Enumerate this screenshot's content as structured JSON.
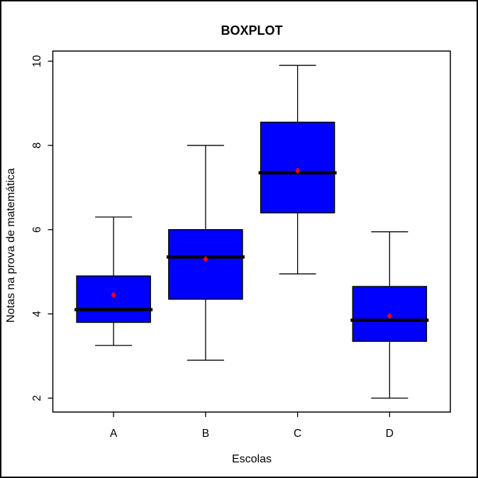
{
  "window": {
    "background": "#FFFFFF",
    "frame_color": "#000000"
  },
  "chart_data": {
    "type": "boxplot",
    "title": "BOXPLOT",
    "xlabel": "Escolas",
    "ylabel": "Notas na prova de matemática",
    "categories": [
      "A",
      "B",
      "C",
      "D"
    ],
    "y_ticks": [
      2,
      4,
      6,
      8,
      10
    ],
    "ylim": [
      1.67,
      10.24
    ],
    "grid": false,
    "legend": false,
    "series": [
      {
        "name": "A",
        "whisker_low": 3.25,
        "q1": 3.8,
        "median": 4.1,
        "q3": 4.9,
        "whisker_high": 6.3,
        "mean": 4.45
      },
      {
        "name": "B",
        "whisker_low": 2.9,
        "q1": 4.35,
        "median": 5.35,
        "q3": 6.0,
        "whisker_high": 8.0,
        "mean": 5.3
      },
      {
        "name": "C",
        "whisker_low": 4.95,
        "q1": 6.4,
        "median": 7.35,
        "q3": 8.55,
        "whisker_high": 9.9,
        "mean": 7.4
      },
      {
        "name": "D",
        "whisker_low": 2.0,
        "q1": 3.35,
        "median": 3.85,
        "q3": 4.65,
        "whisker_high": 5.95,
        "mean": 3.95
      }
    ],
    "colors": {
      "box_fill": "#0000FF",
      "box_border": "#000000",
      "median_line": "#000000",
      "mean_point": "#FF0000",
      "axis": "#000000",
      "text": "#000000"
    }
  }
}
